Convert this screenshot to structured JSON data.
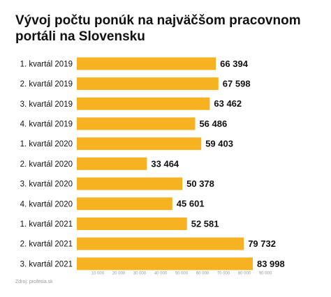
{
  "chart_data": {
    "type": "bar",
    "orientation": "horizontal",
    "title": "Vývoj počtu ponúk na najväčšom pracovnom portáli na Slovensku",
    "source": "Zdroj: profesia.sk",
    "categories": [
      "1. kvartál 2019",
      "2. kvartál 2019",
      "3. kvartál 2019",
      "4. kvartál 2019",
      "1. kvartál 2020",
      "2. kvartál 2020",
      "3. kvartál 2020",
      "4. kvartál 2020",
      "1. kvartál 2021",
      "2. kvartál 2021",
      "3. kvartál 2021"
    ],
    "values": [
      66394,
      67598,
      63462,
      56486,
      59403,
      33464,
      50378,
      45601,
      52581,
      79732,
      83998
    ],
    "value_labels": [
      "66 394",
      "67 598",
      "63 462",
      "56 486",
      "59 403",
      "33 464",
      "50 378",
      "45 601",
      "52 581",
      "79 732",
      "83 998"
    ],
    "color": "#f6b221",
    "xlim": [
      0,
      90000
    ],
    "xticks": [
      {
        "value": 10000,
        "label": "10 000"
      },
      {
        "value": 20000,
        "label": "20 000"
      },
      {
        "value": 30000,
        "label": "30 000"
      },
      {
        "value": 40000,
        "label": "40 000"
      },
      {
        "value": 50000,
        "label": "50 000"
      },
      {
        "value": 60000,
        "label": "60 000"
      },
      {
        "value": 70000,
        "label": "70 000"
      },
      {
        "value": 80000,
        "label": "80 000"
      },
      {
        "value": 90000,
        "label": "90 000"
      }
    ],
    "grid": false
  }
}
